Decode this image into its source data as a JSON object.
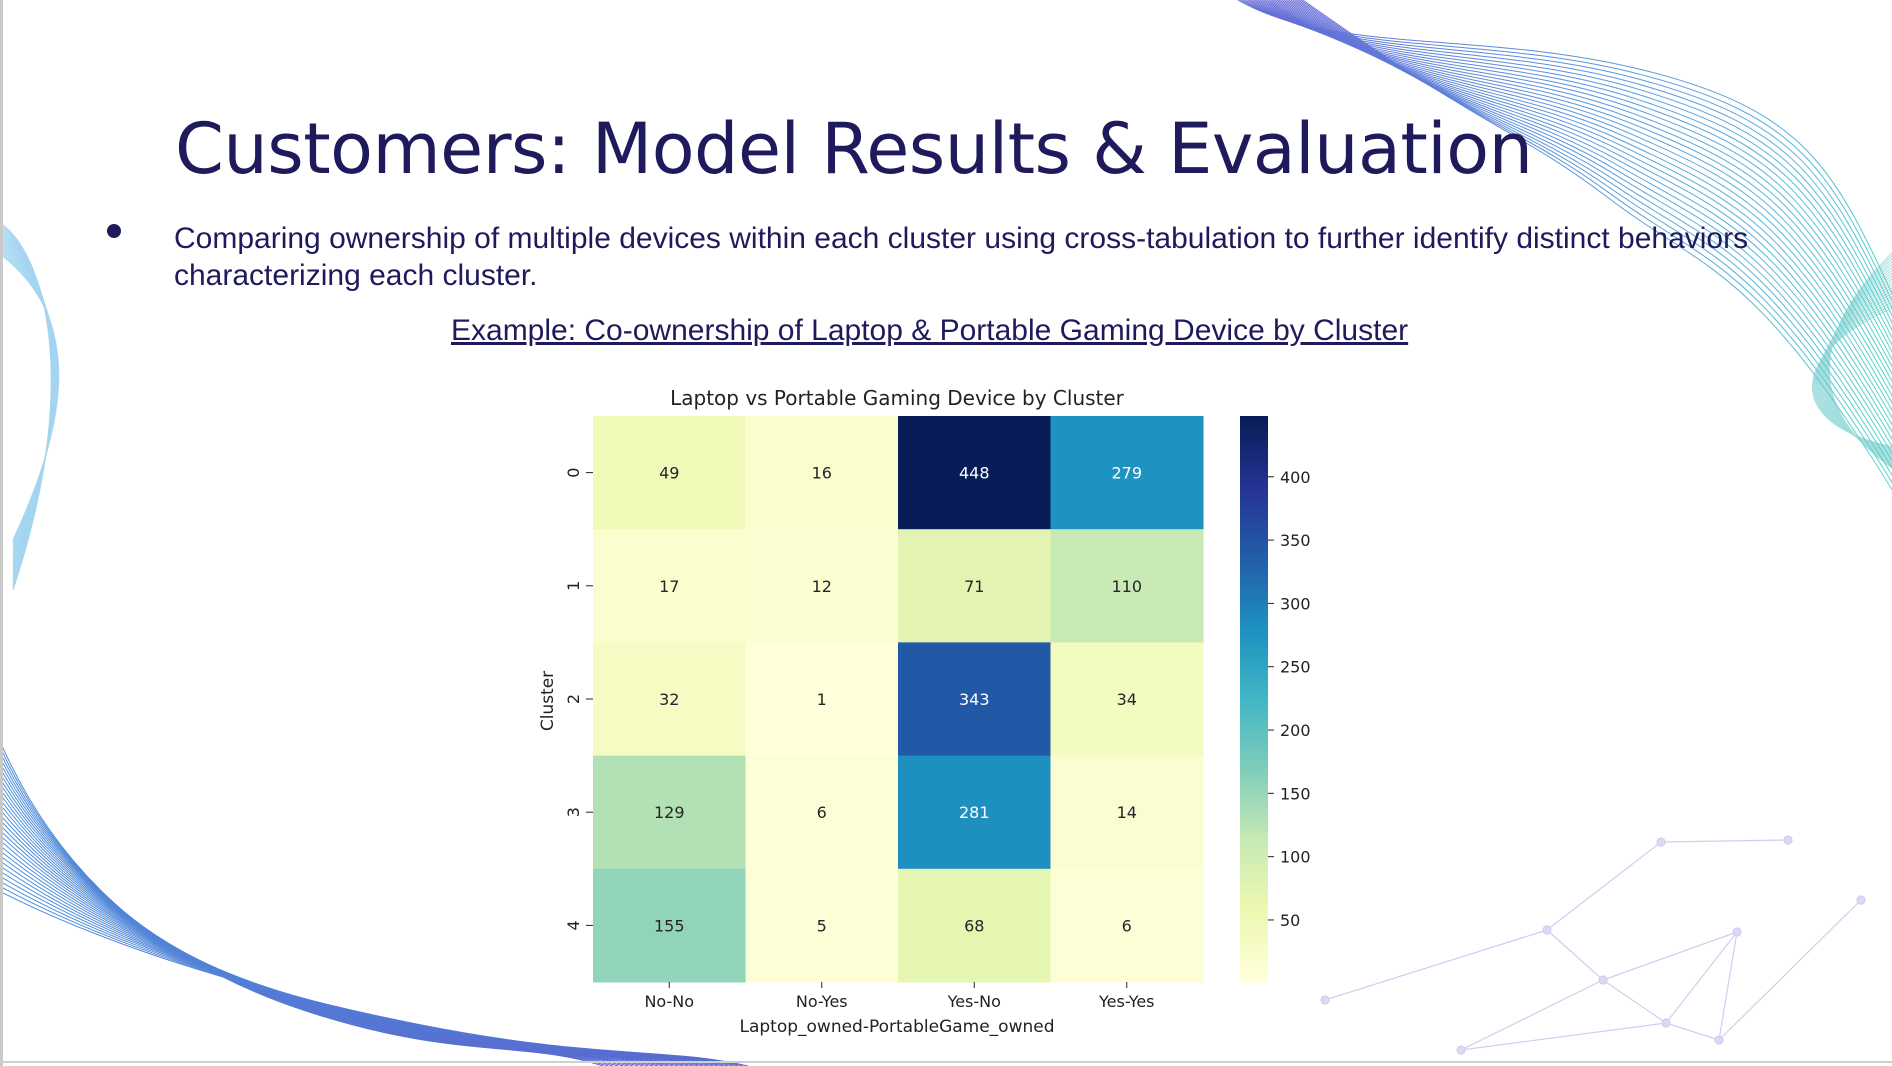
{
  "slide": {
    "title": "Customers: Model Results & Evaluation",
    "bullet": "Comparing ownership of multiple devices within each cluster using cross-tabulation to further identify distinct behaviors characterizing each cluster.",
    "example_caption": "Example: Co-ownership of Laptop & Portable Gaming Device by Cluster"
  },
  "colors": {
    "title": "#1e1a5c",
    "colormap": "YlGnBu"
  },
  "chart_data": {
    "type": "heatmap",
    "title": "Laptop vs Portable Gaming Device by Cluster",
    "xlabel": "Laptop_owned-PortableGame_owned",
    "ylabel": "Cluster",
    "x_categories": [
      "No-No",
      "No-Yes",
      "Yes-No",
      "Yes-Yes"
    ],
    "y_categories": [
      "0",
      "1",
      "2",
      "3",
      "4"
    ],
    "values": [
      [
        49,
        16,
        448,
        279
      ],
      [
        17,
        12,
        71,
        110
      ],
      [
        32,
        1,
        343,
        34
      ],
      [
        129,
        6,
        281,
        14
      ],
      [
        155,
        5,
        68,
        6
      ]
    ],
    "colorbar_ticks": [
      "50",
      "100",
      "150",
      "200",
      "250",
      "300",
      "350",
      "400"
    ],
    "color_range": [
      1,
      448
    ],
    "annotated": true,
    "legend": "colorbar-right"
  }
}
